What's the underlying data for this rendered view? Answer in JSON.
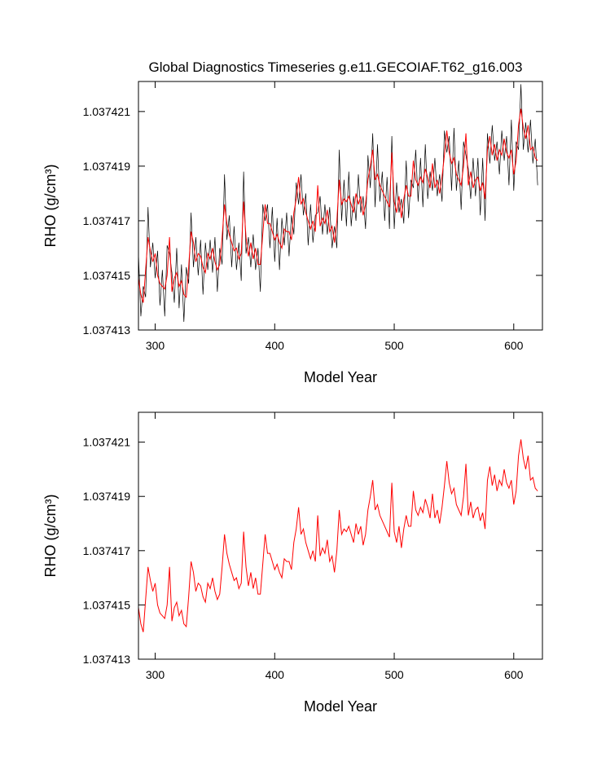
{
  "chart_data": [
    {
      "type": "line",
      "title": "Global Diagnostics Timeseries g.e11.GECOIAF.T62_g16.003",
      "xlabel": "Model Year",
      "ylabel": "RHO (g/cm³)",
      "x": [
        286,
        288,
        290,
        292,
        294,
        296,
        298,
        300,
        302,
        304,
        306,
        308,
        310,
        312,
        314,
        316,
        318,
        320,
        322,
        324,
        326,
        328,
        330,
        332,
        334,
        336,
        338,
        340,
        342,
        344,
        346,
        348,
        350,
        352,
        354,
        356,
        358,
        360,
        362,
        364,
        366,
        368,
        370,
        372,
        374,
        376,
        378,
        380,
        382,
        384,
        386,
        388,
        390,
        392,
        394,
        396,
        398,
        400,
        402,
        404,
        406,
        408,
        410,
        412,
        414,
        416,
        418,
        420,
        422,
        424,
        426,
        428,
        430,
        432,
        434,
        436,
        438,
        440,
        442,
        444,
        446,
        448,
        450,
        452,
        454,
        456,
        458,
        460,
        462,
        464,
        466,
        468,
        470,
        472,
        474,
        476,
        478,
        480,
        482,
        484,
        486,
        488,
        490,
        492,
        494,
        496,
        498,
        500,
        502,
        504,
        506,
        508,
        510,
        512,
        514,
        516,
        518,
        520,
        522,
        524,
        526,
        528,
        530,
        532,
        534,
        536,
        538,
        540,
        542,
        544,
        546,
        548,
        550,
        552,
        554,
        556,
        558,
        560,
        562,
        564,
        566,
        568,
        570,
        572,
        574,
        576,
        578,
        580,
        582,
        584,
        586,
        588,
        590,
        592,
        594,
        596,
        598,
        600,
        602,
        604,
        606,
        608,
        610,
        612,
        614,
        616,
        618,
        620
      ],
      "series": [
        {
          "color": "#000000",
          "values": [
            1.0374158,
            1.0374135,
            1.0374146,
            1.0374142,
            1.0374175,
            1.0374153,
            1.0374162,
            1.0374149,
            1.0374159,
            1.0374139,
            1.0374152,
            1.0374135,
            1.0374161,
            1.0374158,
            1.0374151,
            1.037414,
            1.037416,
            1.0374138,
            1.0374154,
            1.0374133,
            1.0374153,
            1.0374147,
            1.0374173,
            1.0374153,
            1.0374164,
            1.037415,
            1.0374163,
            1.0374143,
            1.0374162,
            1.0374152,
            1.0374163,
            1.0374151,
            1.0374164,
            1.0374144,
            1.037416,
            1.0374154,
            1.0374187,
            1.0374163,
            1.0374172,
            1.0374153,
            1.0374168,
            1.0374152,
            1.0374162,
            1.0374148,
            1.0374188,
            1.0374158,
            1.0374164,
            1.0374153,
            1.0374165,
            1.0374152,
            1.037416,
            1.0374144,
            1.0374176,
            1.037417,
            1.0374176,
            1.037416,
            1.0374175,
            1.0374155,
            1.0374171,
            1.0374152,
            1.0374171,
            1.0374161,
            1.0374173,
            1.0374157,
            1.0374172,
            1.0374165,
            1.0374184,
            1.0374176,
            1.0374187,
            1.0374172,
            1.037418,
            1.0374161,
            1.0374176,
            1.0374162,
            1.0374172,
            1.0374173,
            1.0374179,
            1.0374165,
            1.0374176,
            1.0374165,
            1.0374175,
            1.037416,
            1.0374168,
            1.037416,
            1.0374196,
            1.037417,
            1.0374185,
            1.0374168,
            1.0374188,
            1.0374168,
            1.0374179,
            1.037417,
            1.0374187,
            1.0374173,
            1.0374179,
            1.0374167,
            1.0374194,
            1.0374182,
            1.0374202,
            1.0374175,
            1.0374198,
            1.0374177,
            1.0374188,
            1.037417,
            1.0374186,
            1.0374167,
            1.0374201,
            1.0374167,
            1.0374184,
            1.0374173,
            1.0374178,
            1.0374169,
            1.0374192,
            1.0374171,
            1.0374185,
            1.0374182,
            1.0374196,
            1.0374177,
            1.0374193,
            1.0374175,
            1.0374198,
            1.0374178,
            1.0374188,
            1.0374181,
            1.0374193,
            1.0374179,
            1.0374187,
            1.0374177,
            1.0374203,
            1.0374195,
            1.0374201,
            1.0374181,
            1.0374204,
            1.0374181,
            1.0374192,
            1.0374174,
            1.0374199,
            1.0374194,
            1.0374189,
            1.0374178,
            1.0374193,
            1.0374179,
            1.0374193,
            1.0374172,
            1.0374193,
            1.037417,
            1.0374202,
            1.0374191,
            1.0374205,
            1.0374192,
            1.0374199,
            1.0374187,
            1.0374203,
            1.0374192,
            1.0374201,
            1.0374183,
            1.0374207,
            1.0374181,
            1.0374199,
            1.0374196,
            1.037422,
            1.0374196,
            1.0374206,
            1.0374195,
            1.0374207,
            1.0374191,
            1.03742,
            1.0374183
          ]
        },
        {
          "color": "#ff0000",
          "values": [
            1.0374149,
            1.0374143,
            1.037414,
            1.0374152,
            1.0374164,
            1.0374159,
            1.0374155,
            1.0374158,
            1.037415,
            1.0374147,
            1.0374146,
            1.0374145,
            1.037415,
            1.0374164,
            1.0374144,
            1.0374149,
            1.0374151,
            1.0374146,
            1.0374148,
            1.0374143,
            1.0374142,
            1.0374153,
            1.0374166,
            1.0374162,
            1.0374155,
            1.0374158,
            1.0374157,
            1.0374153,
            1.0374151,
            1.0374158,
            1.0374156,
            1.037416,
            1.0374155,
            1.0374152,
            1.0374154,
            1.0374164,
            1.0374176,
            1.0374169,
            1.0374165,
            1.0374162,
            1.0374159,
            1.037416,
            1.0374156,
            1.0374158,
            1.0374177,
            1.0374164,
            1.0374157,
            1.0374162,
            1.0374156,
            1.037416,
            1.0374154,
            1.0374154,
            1.0374165,
            1.0374176,
            1.0374169,
            1.0374169,
            1.0374166,
            1.0374163,
            1.0374165,
            1.0374162,
            1.037416,
            1.0374167,
            1.0374166,
            1.0374166,
            1.0374163,
            1.0374173,
            1.0374178,
            1.0374186,
            1.0374176,
            1.0374178,
            1.0374173,
            1.037417,
            1.0374167,
            1.037417,
            1.0374166,
            1.0374183,
            1.0374168,
            1.0374171,
            1.0374169,
            1.0374174,
            1.0374166,
            1.0374168,
            1.0374162,
            1.037417,
            1.0374185,
            1.0374176,
            1.0374178,
            1.0374177,
            1.0374179,
            1.0374176,
            1.0374173,
            1.037418,
            1.0374176,
            1.0374179,
            1.0374172,
            1.0374176,
            1.0374185,
            1.037419,
            1.0374196,
            1.0374185,
            1.0374187,
            1.0374183,
            1.0374181,
            1.0374179,
            1.0374177,
            1.0374175,
            1.0374195,
            1.0374177,
            1.0374173,
            1.0374179,
            1.0374171,
            1.0374178,
            1.0374183,
            1.0374179,
            1.0374179,
            1.0374192,
            1.0374185,
            1.0374183,
            1.0374186,
            1.0374184,
            1.0374189,
            1.0374186,
            1.0374182,
            1.0374191,
            1.0374182,
            1.0374185,
            1.037418,
            1.0374186,
            1.0374194,
            1.0374203,
            1.0374195,
            1.0374191,
            1.0374193,
            1.0374187,
            1.0374185,
            1.0374183,
            1.037419,
            1.0374202,
            1.0374183,
            1.0374188,
            1.0374182,
            1.0374185,
            1.0374186,
            1.0374181,
            1.0374184,
            1.0374178,
            1.0374196,
            1.0374201,
            1.0374194,
            1.0374198,
            1.0374192,
            1.0374196,
            1.0374194,
            1.03742,
            1.0374195,
            1.0374193,
            1.0374196,
            1.0374187,
            1.0374192,
            1.0374205,
            1.0374211,
            1.0374204,
            1.03742,
            1.0374205,
            1.0374196,
            1.0374197,
            1.0374193,
            1.0374192
          ]
        }
      ],
      "xlim": [
        286,
        624
      ],
      "xticks": [
        300,
        400,
        500,
        600
      ],
      "ylim": [
        1.037413,
        1.0374221
      ],
      "yticks": [
        1.037413,
        1.037415,
        1.037417,
        1.037419,
        1.037421
      ]
    },
    {
      "type": "line",
      "xlabel": "Model Year",
      "ylabel": "RHO (g/cm³)",
      "x": [
        286,
        288,
        290,
        292,
        294,
        296,
        298,
        300,
        302,
        304,
        306,
        308,
        310,
        312,
        314,
        316,
        318,
        320,
        322,
        324,
        326,
        328,
        330,
        332,
        334,
        336,
        338,
        340,
        342,
        344,
        346,
        348,
        350,
        352,
        354,
        356,
        358,
        360,
        362,
        364,
        366,
        368,
        370,
        372,
        374,
        376,
        378,
        380,
        382,
        384,
        386,
        388,
        390,
        392,
        394,
        396,
        398,
        400,
        402,
        404,
        406,
        408,
        410,
        412,
        414,
        416,
        418,
        420,
        422,
        424,
        426,
        428,
        430,
        432,
        434,
        436,
        438,
        440,
        442,
        444,
        446,
        448,
        450,
        452,
        454,
        456,
        458,
        460,
        462,
        464,
        466,
        468,
        470,
        472,
        474,
        476,
        478,
        480,
        482,
        484,
        486,
        488,
        490,
        492,
        494,
        496,
        498,
        500,
        502,
        504,
        506,
        508,
        510,
        512,
        514,
        516,
        518,
        520,
        522,
        524,
        526,
        528,
        530,
        532,
        534,
        536,
        538,
        540,
        542,
        544,
        546,
        548,
        550,
        552,
        554,
        556,
        558,
        560,
        562,
        564,
        566,
        568,
        570,
        572,
        574,
        576,
        578,
        580,
        582,
        584,
        586,
        588,
        590,
        592,
        594,
        596,
        598,
        600,
        602,
        604,
        606,
        608,
        610,
        612,
        614,
        616,
        618,
        620
      ],
      "series": [
        {
          "color": "#ff0000",
          "values": [
            1.0374149,
            1.0374143,
            1.037414,
            1.0374152,
            1.0374164,
            1.0374159,
            1.0374155,
            1.0374158,
            1.037415,
            1.0374147,
            1.0374146,
            1.0374145,
            1.037415,
            1.0374164,
            1.0374144,
            1.0374149,
            1.0374151,
            1.0374146,
            1.0374148,
            1.0374143,
            1.0374142,
            1.0374153,
            1.0374166,
            1.0374162,
            1.0374155,
            1.0374158,
            1.0374157,
            1.0374153,
            1.0374151,
            1.0374158,
            1.0374156,
            1.037416,
            1.0374155,
            1.0374152,
            1.0374154,
            1.0374164,
            1.0374176,
            1.0374169,
            1.0374165,
            1.0374162,
            1.0374159,
            1.037416,
            1.0374156,
            1.0374158,
            1.0374177,
            1.0374164,
            1.0374157,
            1.0374162,
            1.0374156,
            1.037416,
            1.0374154,
            1.0374154,
            1.0374165,
            1.0374176,
            1.0374169,
            1.0374169,
            1.0374166,
            1.0374163,
            1.0374165,
            1.0374162,
            1.037416,
            1.0374167,
            1.0374166,
            1.0374166,
            1.0374163,
            1.0374173,
            1.0374178,
            1.0374186,
            1.0374176,
            1.0374178,
            1.0374173,
            1.037417,
            1.0374167,
            1.037417,
            1.0374166,
            1.0374183,
            1.0374168,
            1.0374171,
            1.0374169,
            1.0374174,
            1.0374166,
            1.0374168,
            1.0374162,
            1.037417,
            1.0374185,
            1.0374176,
            1.0374178,
            1.0374177,
            1.0374179,
            1.0374176,
            1.0374173,
            1.037418,
            1.0374176,
            1.0374179,
            1.0374172,
            1.0374176,
            1.0374185,
            1.037419,
            1.0374196,
            1.0374185,
            1.0374187,
            1.0374183,
            1.0374181,
            1.0374179,
            1.0374177,
            1.0374175,
            1.0374195,
            1.0374177,
            1.0374173,
            1.0374179,
            1.0374171,
            1.0374178,
            1.0374183,
            1.0374179,
            1.0374179,
            1.0374192,
            1.0374185,
            1.0374183,
            1.0374186,
            1.0374184,
            1.0374189,
            1.0374186,
            1.0374182,
            1.0374191,
            1.0374182,
            1.0374185,
            1.037418,
            1.0374186,
            1.0374194,
            1.0374203,
            1.0374195,
            1.0374191,
            1.0374193,
            1.0374187,
            1.0374185,
            1.0374183,
            1.037419,
            1.0374202,
            1.0374183,
            1.0374188,
            1.0374182,
            1.0374185,
            1.0374186,
            1.0374181,
            1.0374184,
            1.0374178,
            1.0374196,
            1.0374201,
            1.0374194,
            1.0374198,
            1.0374192,
            1.0374196,
            1.0374194,
            1.03742,
            1.0374195,
            1.0374193,
            1.0374196,
            1.0374187,
            1.0374192,
            1.0374205,
            1.0374211,
            1.0374204,
            1.03742,
            1.0374205,
            1.0374196,
            1.0374197,
            1.0374193,
            1.0374192
          ]
        }
      ],
      "xlim": [
        286,
        624
      ],
      "xticks": [
        300,
        400,
        500,
        600
      ],
      "ylim": [
        1.037413,
        1.0374221
      ],
      "yticks": [
        1.037413,
        1.037415,
        1.037417,
        1.037419,
        1.037421
      ]
    }
  ]
}
